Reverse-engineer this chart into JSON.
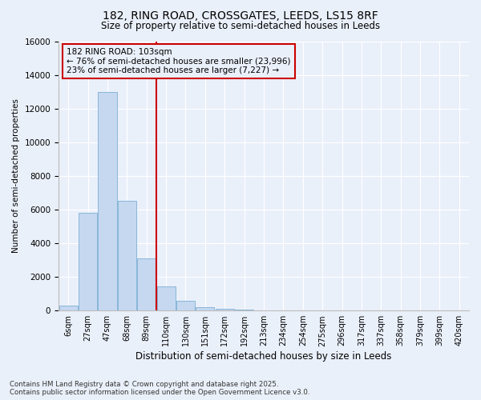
{
  "title_line1": "182, RING ROAD, CROSSGATES, LEEDS, LS15 8RF",
  "title_line2": "Size of property relative to semi-detached houses in Leeds",
  "xlabel": "Distribution of semi-detached houses by size in Leeds",
  "ylabel": "Number of semi-detached properties",
  "footer_line1": "Contains HM Land Registry data © Crown copyright and database right 2025.",
  "footer_line2": "Contains public sector information licensed under the Open Government Licence v3.0.",
  "annotation_line1": "182 RING ROAD: 103sqm",
  "annotation_line2": "← 76% of semi-detached houses are smaller (23,996)",
  "annotation_line3": "23% of semi-detached houses are larger (7,227) →",
  "bar_color": "#c5d8f0",
  "bar_edge_color": "#7bafd4",
  "vline_color": "#cc0000",
  "annotation_box_edge_color": "#cc0000",
  "background_color": "#eaf0fa",
  "grid_color": "#ffffff",
  "categories": [
    "6sqm",
    "27sqm",
    "47sqm",
    "68sqm",
    "89sqm",
    "110sqm",
    "130sqm",
    "151sqm",
    "172sqm",
    "192sqm",
    "213sqm",
    "234sqm",
    "254sqm",
    "275sqm",
    "296sqm",
    "317sqm",
    "337sqm",
    "358sqm",
    "379sqm",
    "399sqm",
    "420sqm"
  ],
  "values": [
    300,
    5800,
    13000,
    6500,
    3100,
    1450,
    600,
    200,
    100,
    50,
    20,
    10,
    5,
    3,
    2,
    2,
    1,
    1,
    1,
    1,
    1
  ],
  "vline_x": 4.5,
  "ylim": [
    0,
    16000
  ],
  "yticks": [
    0,
    2000,
    4000,
    6000,
    8000,
    10000,
    12000,
    14000,
    16000
  ]
}
